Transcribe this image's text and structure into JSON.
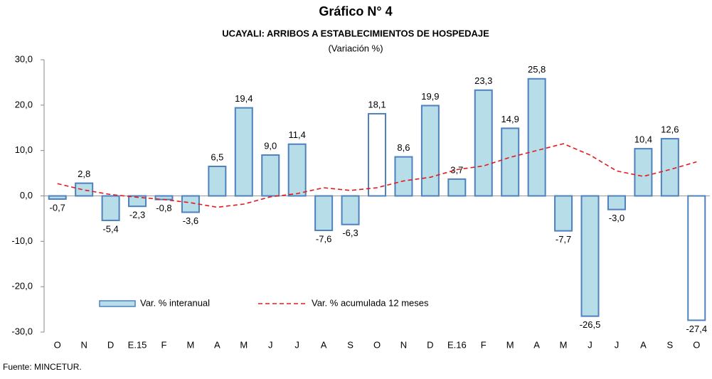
{
  "chart_data": {
    "type": "bar",
    "title": "Gráfico N° 4",
    "subtitle": "UCAYALI: ARRIBOS A ESTABLECIMIENTOS DE HOSPEDAJE",
    "unit_label": "(Variación %)",
    "source": "Fuente: MINCETUR.",
    "categories": [
      "O",
      "N",
      "D",
      "E.15",
      "F",
      "M",
      "A",
      "M",
      "J",
      "J",
      "A",
      "S",
      "O",
      "N",
      "D",
      "E.16",
      "F",
      "M",
      "A",
      "M",
      "J",
      "J",
      "A",
      "S",
      "O"
    ],
    "series": [
      {
        "name": "Var. % interanual",
        "type": "bar",
        "color": "#b7dde8",
        "edge_color": "#4f81bd",
        "bar_colors": [
          "#b7dde8",
          "#b7dde8",
          "#b7dde8",
          "#b7dde8",
          "#b7dde8",
          "#b7dde8",
          "#b7dde8",
          "#b7dde8",
          "#b7dde8",
          "#b7dde8",
          "#b7dde8",
          "#b7dde8",
          "#ffffff",
          "#b7dde8",
          "#b7dde8",
          "#b7dde8",
          "#b7dde8",
          "#b7dde8",
          "#b7dde8",
          "#b7dde8",
          "#b7dde8",
          "#b7dde8",
          "#b7dde8",
          "#b7dde8",
          "#ffffff"
        ],
        "values": [
          -0.7,
          2.8,
          -5.4,
          -2.3,
          -0.8,
          -3.6,
          6.5,
          19.4,
          9.0,
          11.4,
          -7.6,
          -6.3,
          18.1,
          8.6,
          19.9,
          3.7,
          23.3,
          14.9,
          25.8,
          -7.7,
          -26.5,
          -3.0,
          10.4,
          12.6,
          -27.4
        ],
        "value_labels": [
          "-0,7",
          "2,8",
          "-5,4",
          "-2,3",
          "-0,8",
          "-3,6",
          "6,5",
          "19,4",
          "9,0",
          "11,4",
          "-7,6",
          "-6,3",
          "18,1",
          "8,6",
          "19,9",
          "3,7",
          "23,3",
          "14,9",
          "25,8",
          "-7,7",
          "-26,5",
          "-3,0",
          "10,4",
          "12,6",
          "-27,4"
        ]
      },
      {
        "name": "Var. % acumulada 12 meses",
        "type": "line",
        "color": "#e31a1c",
        "dashed": true,
        "values": [
          2.7,
          1.3,
          0.3,
          -0.3,
          -0.8,
          -1.5,
          -2.5,
          -1.8,
          -0.2,
          0.5,
          1.8,
          1.2,
          1.8,
          3.3,
          4.1,
          5.8,
          6.6,
          8.5,
          10.0,
          11.5,
          9.0,
          5.5,
          4.3,
          5.8,
          7.5
        ]
      }
    ],
    "ylim": [
      -30,
      30
    ],
    "yticks": [
      {
        "value": -30,
        "label": "-30,0"
      },
      {
        "value": -20,
        "label": "-20,0"
      },
      {
        "value": -10,
        "label": "-10,0"
      },
      {
        "value": 0,
        "label": "0,0"
      },
      {
        "value": 10,
        "label": "10,0"
      },
      {
        "value": 20,
        "label": "20,0"
      },
      {
        "value": 30,
        "label": "30,0"
      }
    ],
    "grid": false
  }
}
